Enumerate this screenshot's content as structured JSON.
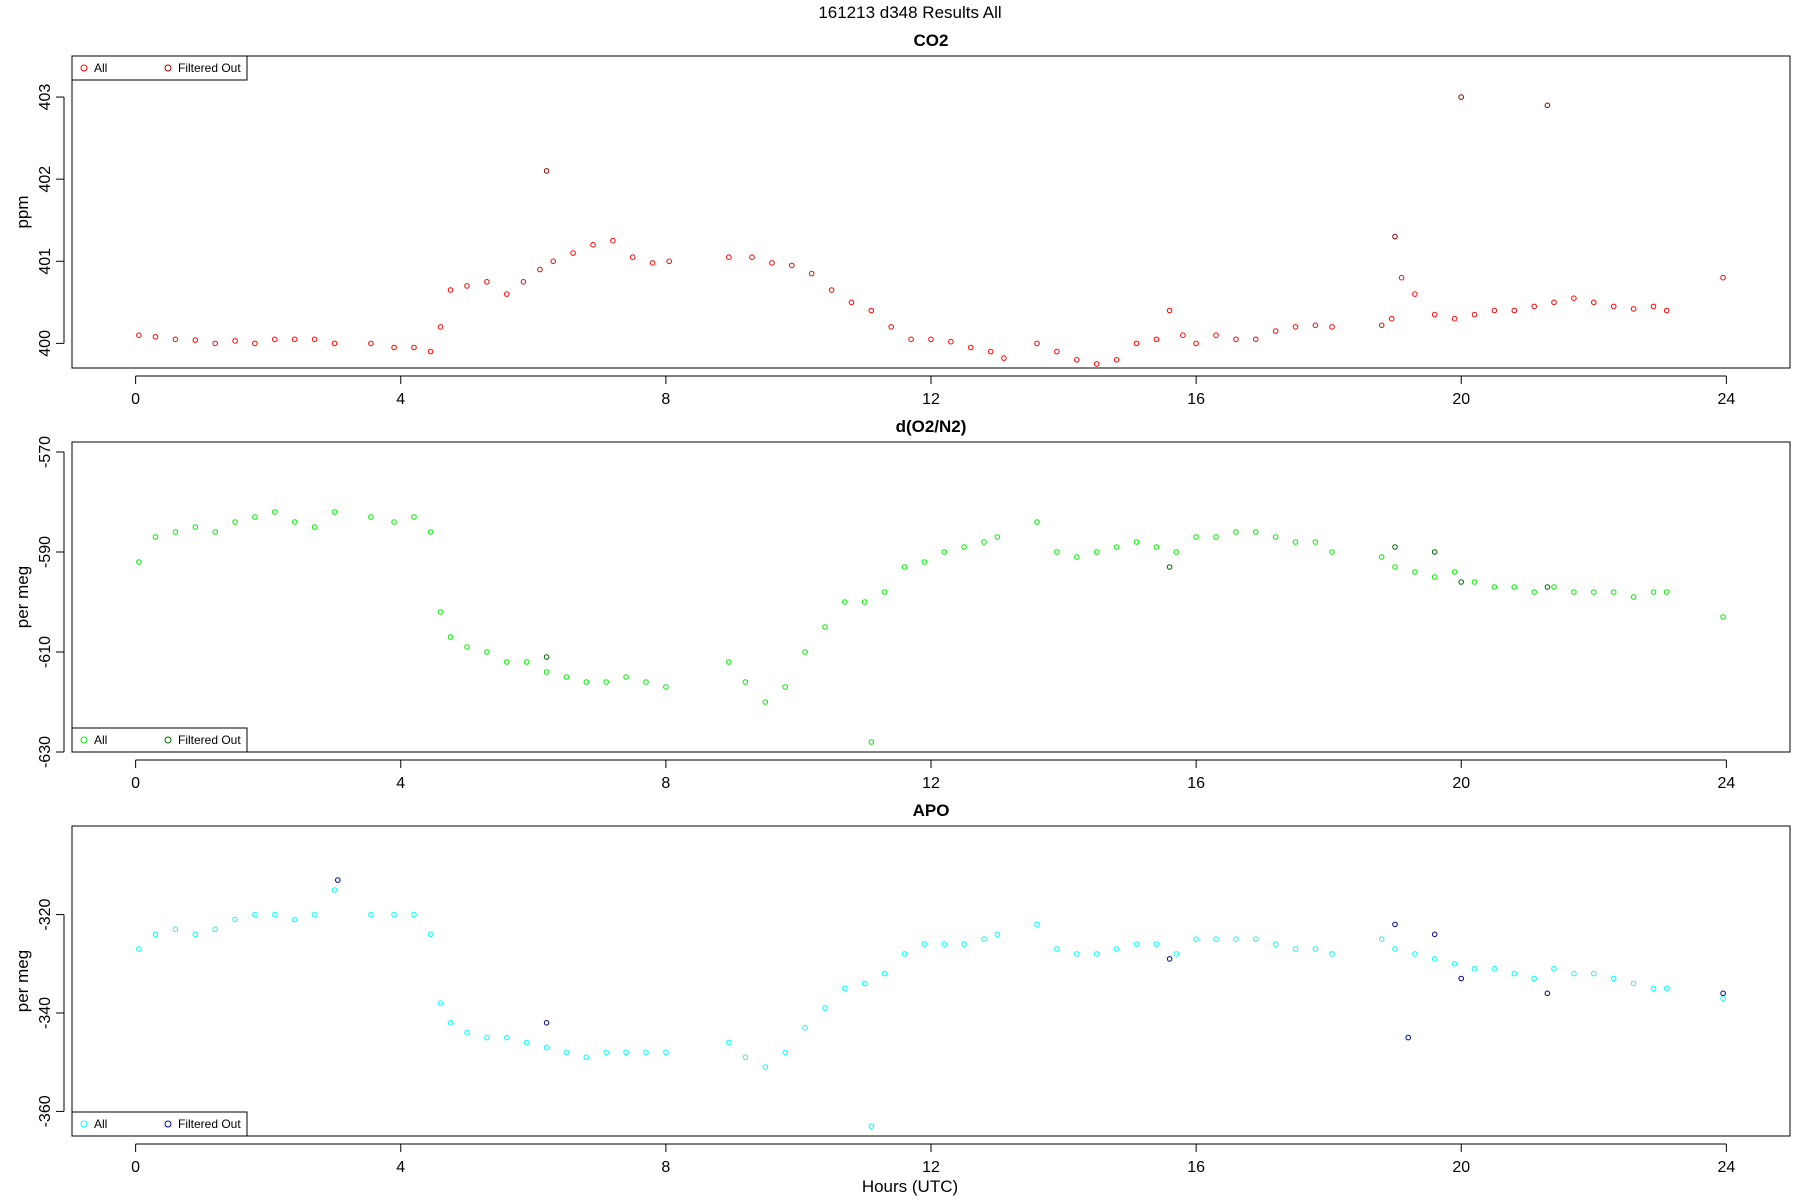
{
  "figure": {
    "main_title": "161213   d348   Results All",
    "xlabel": "Hours (UTC)"
  },
  "chart_data": [
    {
      "type": "scatter",
      "title": "CO2",
      "ylabel": "ppm",
      "xlim": [
        -0.96,
        24.96
      ],
      "ylim": [
        399.7,
        403.5
      ],
      "x_ticks": [
        0,
        4,
        8,
        12,
        16,
        20,
        24
      ],
      "y_ticks": [
        400,
        401,
        402,
        403
      ],
      "legend": {
        "placement": "top-left",
        "entries": [
          "All",
          "Filtered Out"
        ]
      },
      "colors": {
        "all": "#ff0000",
        "filtered": "#8b0000"
      },
      "series": [
        {
          "name": "All",
          "x": [
            0.05,
            0.3,
            0.6,
            0.9,
            1.2,
            1.5,
            1.8,
            2.1,
            2.4,
            2.7,
            3.0,
            3.55,
            3.9,
            4.2,
            4.45,
            4.6,
            4.75,
            5.0,
            5.3,
            5.6,
            5.85,
            6.1,
            6.3,
            6.6,
            6.9,
            7.2,
            7.5,
            7.8,
            8.05,
            8.95,
            9.3,
            9.6,
            9.9,
            10.2,
            10.5,
            10.8,
            11.1,
            11.4,
            11.7,
            12.0,
            12.3,
            12.6,
            12.9,
            13.1,
            13.6,
            13.9,
            14.2,
            14.5,
            14.8,
            15.1,
            15.4,
            15.6,
            15.8,
            16.0,
            16.3,
            16.6,
            16.9,
            17.2,
            17.5,
            17.8,
            18.05,
            18.8,
            18.95,
            19.1,
            19.3,
            19.6,
            19.9,
            20.2,
            20.5,
            20.8,
            21.1,
            21.4,
            21.7,
            22.0,
            22.3,
            22.6,
            22.9,
            23.1,
            23.95
          ],
          "y": [
            400.1,
            400.08,
            400.05,
            400.04,
            400.0,
            400.03,
            400.0,
            400.05,
            400.05,
            400.05,
            400.0,
            400.0,
            399.95,
            399.95,
            399.9,
            400.2,
            400.65,
            400.7,
            400.75,
            400.6,
            400.75,
            400.9,
            401.0,
            401.1,
            401.2,
            401.25,
            401.05,
            400.98,
            401.0,
            401.05,
            401.05,
            400.98,
            400.95,
            400.85,
            400.65,
            400.5,
            400.4,
            400.2,
            400.05,
            400.05,
            400.02,
            399.95,
            399.9,
            399.82,
            400.0,
            399.9,
            399.8,
            399.75,
            399.8,
            400.0,
            400.05,
            400.4,
            400.1,
            400.0,
            400.1,
            400.05,
            400.05,
            400.15,
            400.2,
            400.22,
            400.2,
            400.22,
            400.3,
            400.8,
            400.6,
            400.35,
            400.3,
            400.35,
            400.4,
            400.4,
            400.45,
            400.5,
            400.55,
            400.5,
            400.45,
            400.42,
            400.45,
            400.4,
            400.8
          ]
        },
        {
          "name": "Filtered Out",
          "x": [
            6.2,
            19.0,
            20.0,
            21.3
          ],
          "y": [
            402.1,
            401.3,
            403.0,
            402.9
          ]
        }
      ]
    },
    {
      "type": "scatter",
      "title": "d(O2/N2)",
      "ylabel": "per meg",
      "xlim": [
        -0.96,
        24.96
      ],
      "ylim": [
        -630,
        -568
      ],
      "x_ticks": [
        0,
        4,
        8,
        12,
        16,
        20,
        24
      ],
      "y_ticks": [
        -570,
        -590,
        -610,
        -630
      ],
      "legend": {
        "placement": "bottom-left",
        "entries": [
          "All",
          "Filtered Out"
        ]
      },
      "colors": {
        "all": "#00ee00",
        "filtered": "#006400"
      },
      "series": [
        {
          "name": "All",
          "x": [
            0.05,
            0.3,
            0.6,
            0.9,
            1.2,
            1.5,
            1.8,
            2.1,
            2.4,
            2.7,
            3.0,
            3.55,
            3.9,
            4.2,
            4.45,
            4.6,
            4.75,
            5.0,
            5.3,
            5.6,
            5.9,
            6.2,
            6.5,
            6.8,
            7.1,
            7.4,
            7.7,
            8.0,
            8.95,
            9.2,
            9.5,
            9.8,
            10.1,
            10.4,
            10.7,
            11.0,
            11.1,
            11.3,
            11.6,
            11.9,
            12.2,
            12.5,
            12.8,
            13.0,
            13.6,
            13.9,
            14.2,
            14.5,
            14.8,
            15.1,
            15.4,
            15.7,
            16.0,
            16.3,
            16.6,
            16.9,
            17.2,
            17.5,
            17.8,
            18.05,
            18.8,
            19.0,
            19.3,
            19.6,
            19.9,
            20.2,
            20.5,
            20.8,
            21.1,
            21.4,
            21.7,
            22.0,
            22.3,
            22.6,
            22.9,
            23.1,
            23.95
          ],
          "y": [
            -592,
            -587,
            -586,
            -585,
            -586,
            -584,
            -583,
            -582,
            -584,
            -585,
            -582,
            -583,
            -584,
            -583,
            -586,
            -602,
            -607,
            -609,
            -610,
            -612,
            -612,
            -614,
            -615,
            -616,
            -616,
            -615,
            -616,
            -617,
            -612,
            -616,
            -620,
            -617,
            -610,
            -605,
            -600,
            -600,
            -628,
            -598,
            -593,
            -592,
            -590,
            -589,
            -588,
            -587,
            -584,
            -590,
            -591,
            -590,
            -589,
            -588,
            -589,
            -590,
            -587,
            -587,
            -586,
            -586,
            -587,
            -588,
            -588,
            -590,
            -591,
            -593,
            -594,
            -595,
            -594,
            -596,
            -597,
            -597,
            -598,
            -597,
            -598,
            -598,
            -598,
            -599,
            -598,
            -598,
            -603
          ]
        },
        {
          "name": "Filtered Out",
          "x": [
            6.2,
            15.6,
            19.0,
            19.6,
            20.0,
            21.3
          ],
          "y": [
            -611,
            -593,
            -589,
            -590,
            -596,
            -597
          ]
        }
      ]
    },
    {
      "type": "scatter",
      "title": "APO",
      "ylabel": "per meg",
      "xlim": [
        -0.96,
        24.96
      ],
      "ylim": [
        -365,
        -302
      ],
      "x_ticks": [
        0,
        4,
        8,
        12,
        16,
        20,
        24
      ],
      "y_ticks": [
        -320,
        -340,
        -360
      ],
      "legend": {
        "placement": "bottom-left",
        "entries": [
          "All",
          "Filtered Out"
        ]
      },
      "colors": {
        "all": "#00ffff",
        "filtered": "#00008b"
      },
      "series": [
        {
          "name": "All",
          "x": [
            0.05,
            0.3,
            0.6,
            0.9,
            1.2,
            1.5,
            1.8,
            2.1,
            2.4,
            2.7,
            3.0,
            3.55,
            3.9,
            4.2,
            4.45,
            4.6,
            4.75,
            5.0,
            5.3,
            5.6,
            5.9,
            6.2,
            6.5,
            6.8,
            7.1,
            7.4,
            7.7,
            8.0,
            8.95,
            9.2,
            9.5,
            9.8,
            10.1,
            10.4,
            10.7,
            11.0,
            11.1,
            11.3,
            11.6,
            11.9,
            12.2,
            12.5,
            12.8,
            13.0,
            13.6,
            13.9,
            14.2,
            14.5,
            14.8,
            15.1,
            15.4,
            15.7,
            16.0,
            16.3,
            16.6,
            16.9,
            17.2,
            17.5,
            17.8,
            18.05,
            18.8,
            19.0,
            19.3,
            19.6,
            19.9,
            20.2,
            20.5,
            20.8,
            21.1,
            21.4,
            21.7,
            22.0,
            22.3,
            22.6,
            22.9,
            23.1,
            23.95
          ],
          "y": [
            -327,
            -324,
            -323,
            -324,
            -323,
            -321,
            -320,
            -320,
            -321,
            -320,
            -315,
            -320,
            -320,
            -320,
            -324,
            -338,
            -342,
            -344,
            -345,
            -345,
            -346,
            -347,
            -348,
            -349,
            -348,
            -348,
            -348,
            -348,
            -346,
            -349,
            -351,
            -348,
            -343,
            -339,
            -335,
            -334,
            -363,
            -332,
            -328,
            -326,
            -326,
            -326,
            -325,
            -324,
            -322,
            -327,
            -328,
            -328,
            -327,
            -326,
            -326,
            -328,
            -325,
            -325,
            -325,
            -325,
            -326,
            -327,
            -327,
            -328,
            -325,
            -327,
            -328,
            -329,
            -330,
            -331,
            -331,
            -332,
            -333,
            -331,
            -332,
            -332,
            -333,
            -334,
            -335,
            -335,
            -337
          ]
        },
        {
          "name": "Filtered Out",
          "x": [
            3.05,
            6.2,
            15.6,
            19.0,
            19.2,
            19.6,
            20.0,
            21.3,
            23.95
          ],
          "y": [
            -313,
            -342,
            -329,
            -322,
            -345,
            -324,
            -333,
            -336,
            -336
          ]
        }
      ]
    }
  ]
}
